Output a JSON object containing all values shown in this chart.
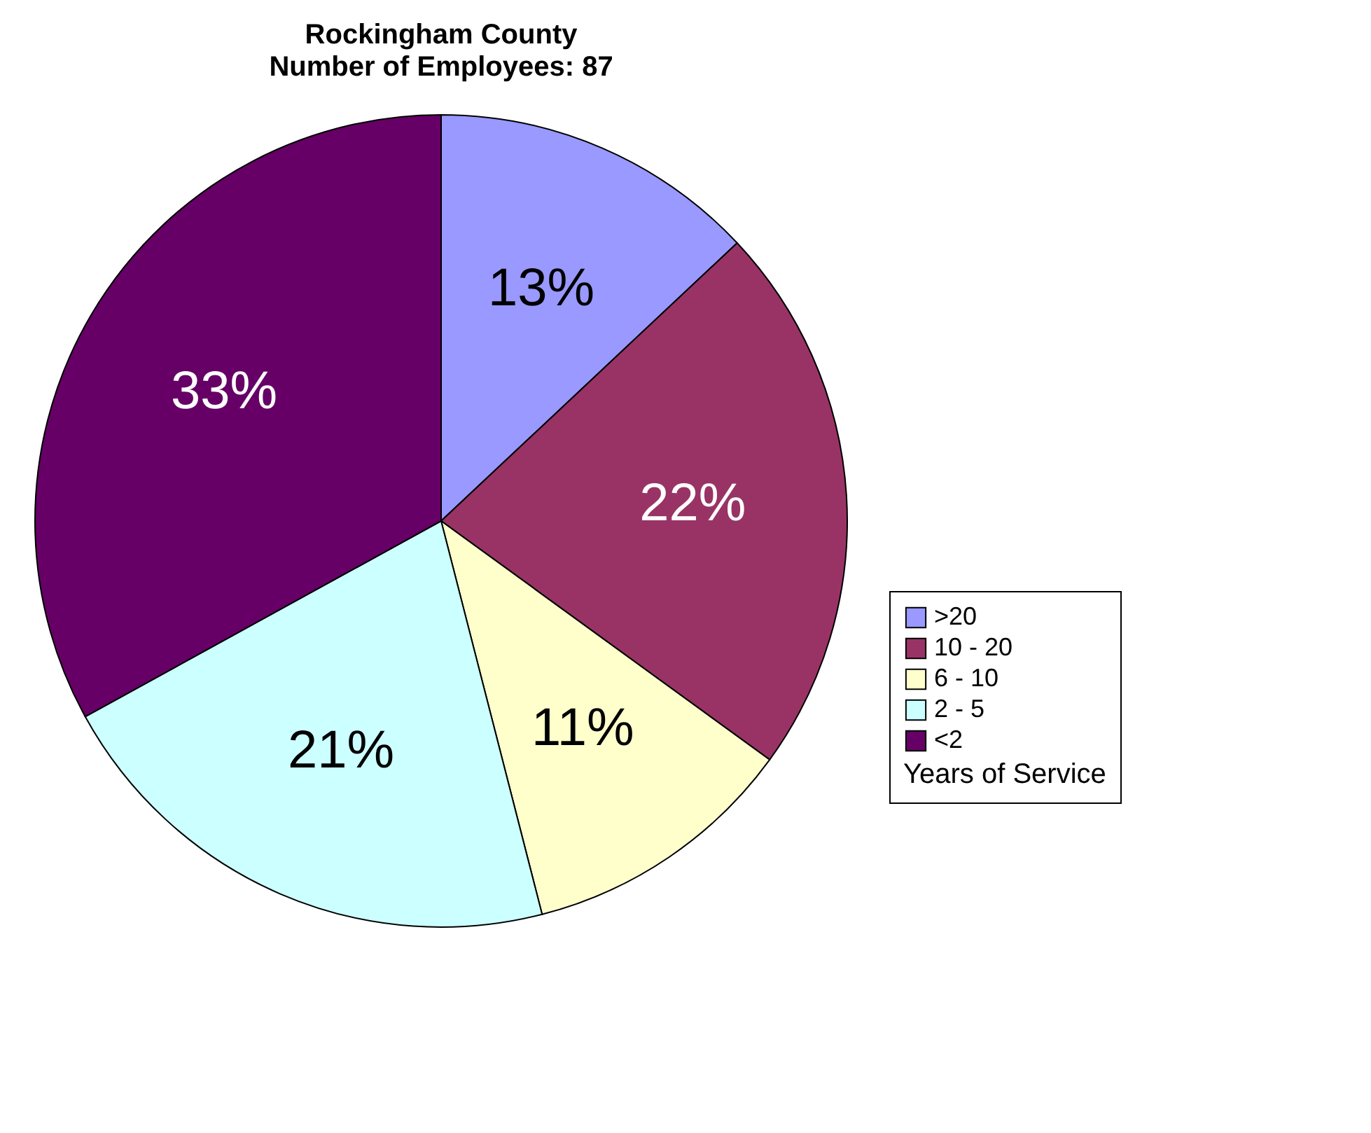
{
  "chart_data": {
    "type": "pie",
    "title": "Rockingham County",
    "subtitle": "Number of Employees:   87",
    "categories": [
      ">20",
      "10 - 20",
      "6 - 10",
      "2 - 5",
      "<2"
    ],
    "values": [
      13,
      22,
      11,
      21,
      33
    ],
    "value_labels": [
      "13%",
      "22%",
      "11%",
      "21%",
      "33%"
    ],
    "colors": [
      "#9999ff",
      "#993366",
      "#ffffcc",
      "#ccffff",
      "#660066"
    ],
    "legend": "bottom right",
    "legend_title": "Years of Service"
  }
}
